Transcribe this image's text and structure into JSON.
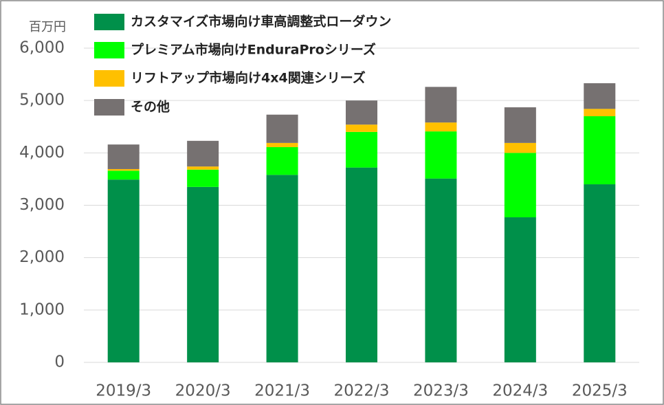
{
  "chart_data": {
    "type": "stacked-bar",
    "y_unit_label": "百万円",
    "categories": [
      "2019/3",
      "2020/3",
      "2021/3",
      "2022/3",
      "2023/3",
      "2024/3",
      "2025/3"
    ],
    "series": [
      {
        "name": "カスタマイズ市場向け車高調整式ローダウン",
        "color": "#00904a",
        "values": [
          3490,
          3350,
          3580,
          3720,
          3510,
          2770,
          3400
        ]
      },
      {
        "name": "プレミアム市場向けEnduraProシリーズ",
        "color": "#00ff00",
        "values": [
          170,
          330,
          530,
          680,
          900,
          1230,
          1300
        ]
      },
      {
        "name": "リフトアップ市場向け4x4関連シリーズ",
        "color": "#ffc000",
        "values": [
          30,
          60,
          80,
          140,
          170,
          190,
          140
        ]
      },
      {
        "name": "その他",
        "color": "#767171",
        "values": [
          470,
          490,
          540,
          460,
          680,
          680,
          490
        ]
      }
    ],
    "ylim": [
      0,
      6000
    ],
    "yticks": [
      0,
      {
        "value": 1000,
        "label": "1,000"
      },
      {
        "value": 2000,
        "label": "2,000"
      },
      {
        "value": 3000,
        "label": "3,000"
      },
      {
        "value": 4000,
        "label": "4,000"
      },
      {
        "value": 5000,
        "label": "5,000"
      },
      {
        "value": 6000,
        "label": "6,000"
      }
    ],
    "grid": true,
    "legend_position": "top-left"
  }
}
